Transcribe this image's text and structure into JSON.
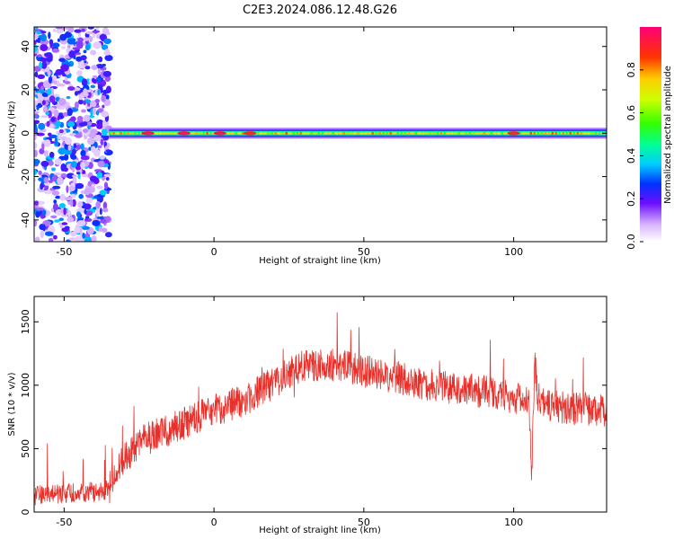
{
  "title": "C2E3.2024.086.12.48.G26",
  "chart_data": [
    {
      "type": "heatmap",
      "xlabel": "Height of straight line (km)",
      "ylabel": "Frequency (Hz)",
      "xlim": [
        -60,
        131
      ],
      "ylim": [
        -50,
        49
      ],
      "x_ticks": [
        -50,
        0,
        50,
        100
      ],
      "y_ticks": [
        -40,
        -20,
        0,
        20,
        40
      ],
      "colorbar": {
        "label": "Normalized spectral amplitude",
        "range": [
          0,
          1
        ],
        "ticks": [
          "0.0",
          "0.2",
          "0.4",
          "0.6",
          "0.8"
        ],
        "tick_values": [
          0.0,
          0.2,
          0.4,
          0.6,
          0.8
        ]
      },
      "noise_region_x": [
        -60,
        -35
      ],
      "tone_line": {
        "frequency_hz": 0,
        "x_start": -35,
        "x_end": 131,
        "peaks": [
          {
            "x": -22,
            "amplitude": 0.95
          },
          {
            "x": -10,
            "amplitude": 0.95
          },
          {
            "x": 2,
            "amplitude": 0.95
          },
          {
            "x": 12,
            "amplitude": 0.9
          },
          {
            "x": 100,
            "amplitude": 0.9
          }
        ]
      }
    },
    {
      "type": "line",
      "xlabel": "Height of straight line (km)",
      "ylabel": "SNR (10 * v/v)",
      "xlim": [
        -60,
        131
      ],
      "ylim": [
        0,
        1700
      ],
      "x_ticks": [
        -50,
        0,
        50,
        100
      ],
      "y_ticks": [
        0,
        500,
        1000,
        1500
      ],
      "series": [
        {
          "color": "#e8302b",
          "x": [
            -60,
            -50,
            -40,
            -35,
            -32,
            -30,
            -25,
            -20,
            -15,
            -10,
            -5,
            0,
            5,
            10,
            15,
            20,
            25,
            30,
            35,
            40,
            45,
            50,
            55,
            60,
            65,
            70,
            75,
            80,
            85,
            90,
            95,
            100,
            103,
            105,
            106,
            107,
            108,
            110,
            115,
            120,
            125,
            131
          ],
          "y": [
            130,
            150,
            160,
            180,
            350,
            420,
            550,
            600,
            650,
            700,
            760,
            800,
            840,
            880,
            950,
            1020,
            1100,
            1150,
            1160,
            1160,
            1140,
            1110,
            1090,
            1060,
            1040,
            1010,
            990,
            970,
            960,
            950,
            930,
            900,
            900,
            880,
            300,
            1200,
            900,
            860,
            830,
            820,
            810,
            790
          ]
        }
      ]
    }
  ]
}
